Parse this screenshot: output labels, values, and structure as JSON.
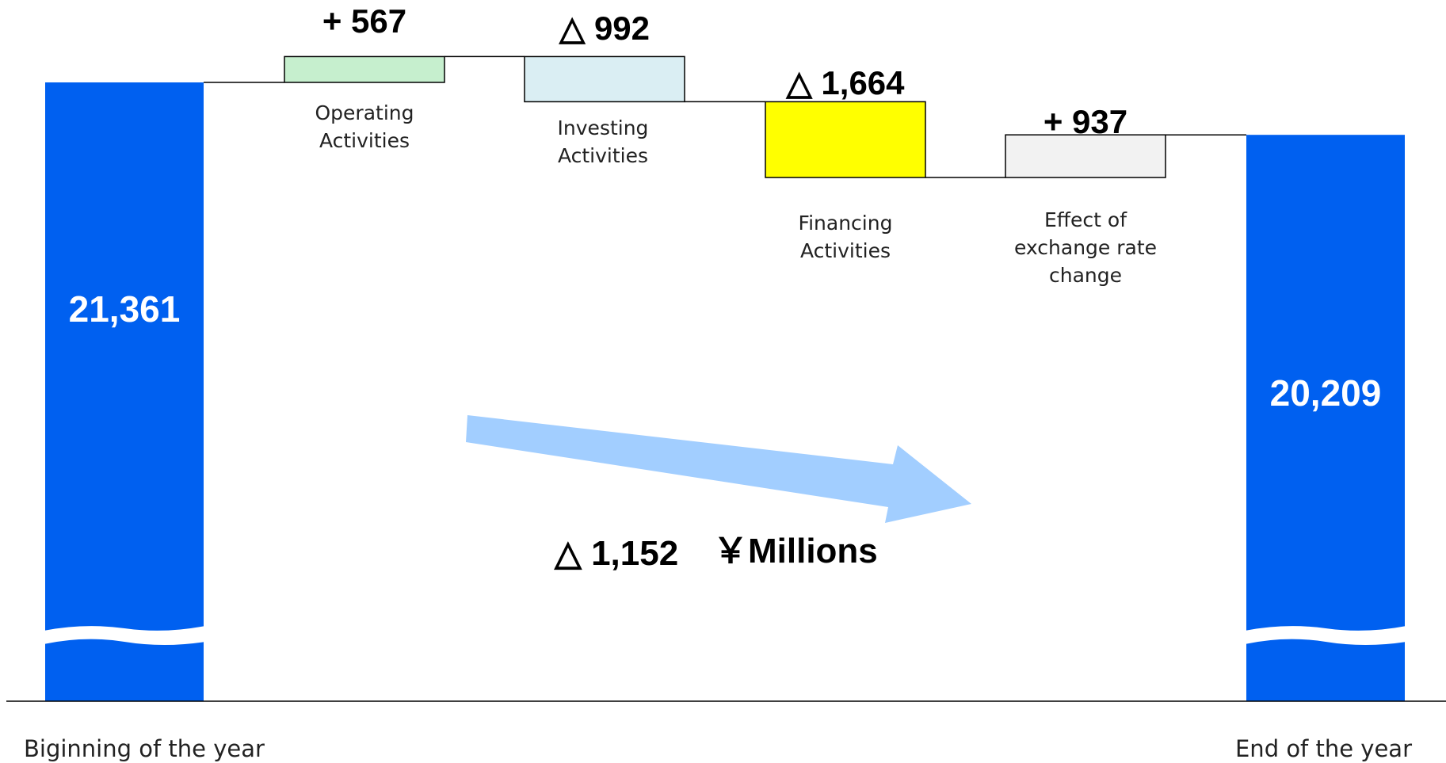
{
  "chart_data": {
    "type": "waterfall",
    "start": {
      "label": "Biginning of the year",
      "value": 21361,
      "value_label": "21,361"
    },
    "steps": [
      {
        "label_lines": [
          "Operating",
          "Activities"
        ],
        "value": 567,
        "value_label": "+ 567",
        "color": "#c6efce"
      },
      {
        "label_lines": [
          "Investing",
          "Activities"
        ],
        "value": -992,
        "value_label": "△ 992",
        "color": "#daeef3"
      },
      {
        "label_lines": [
          "Financing",
          "Activities"
        ],
        "value": -1664,
        "value_label": "△ 1,664",
        "color": "#ffff00"
      },
      {
        "label_lines": [
          "Effect of",
          "exchange rate",
          "change"
        ],
        "value": 937,
        "value_label": "+ 937",
        "color": "#f2f2f2"
      }
    ],
    "end": {
      "label": "End of the year",
      "value": 20209,
      "value_label": "20,209"
    },
    "net_change": {
      "value": -1152,
      "value_label": "△ 1,152",
      "unit": "￥Millions"
    },
    "colors": {
      "total_bar": "#0060f0",
      "arrow": "#9dcbff",
      "connector": "#000000"
    },
    "axis_break": true
  }
}
